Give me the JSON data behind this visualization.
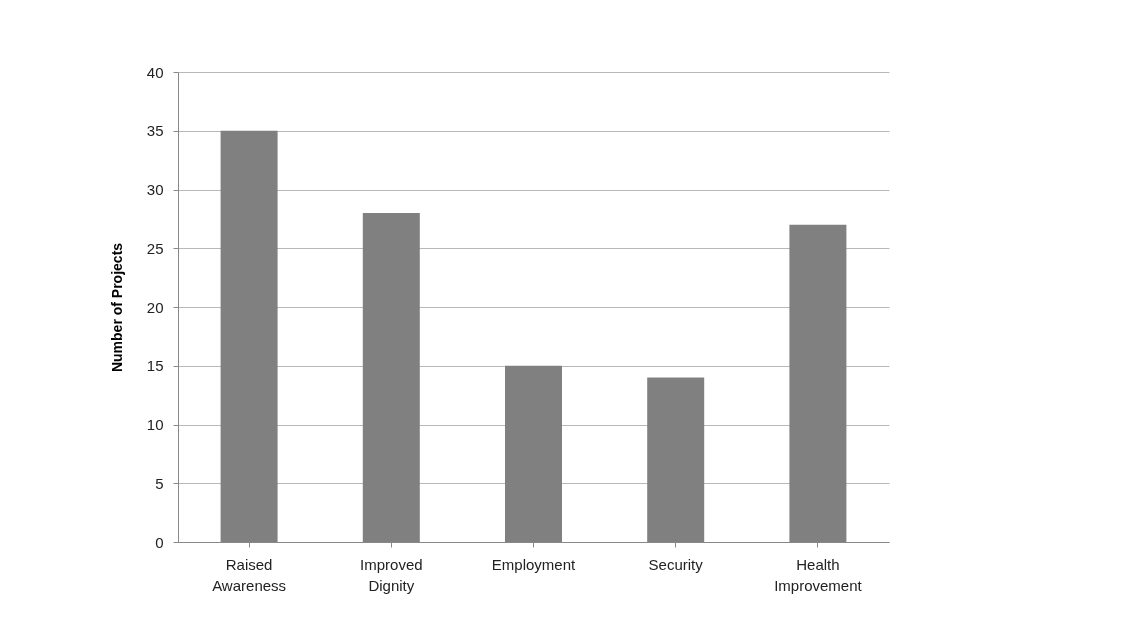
{
  "chart_data": {
    "type": "bar",
    "ylabel": "Number of Projects",
    "categories": [
      "Raised Awareness",
      "Improved Dignity",
      "Employment",
      "Security",
      "Health Improvement"
    ],
    "values": [
      35,
      28,
      15,
      14,
      27
    ],
    "color": "#808080",
    "ylim": [
      0,
      40
    ],
    "yticks": [
      0,
      5,
      10,
      15,
      20,
      25,
      30,
      35,
      40
    ],
    "grid": "y"
  }
}
